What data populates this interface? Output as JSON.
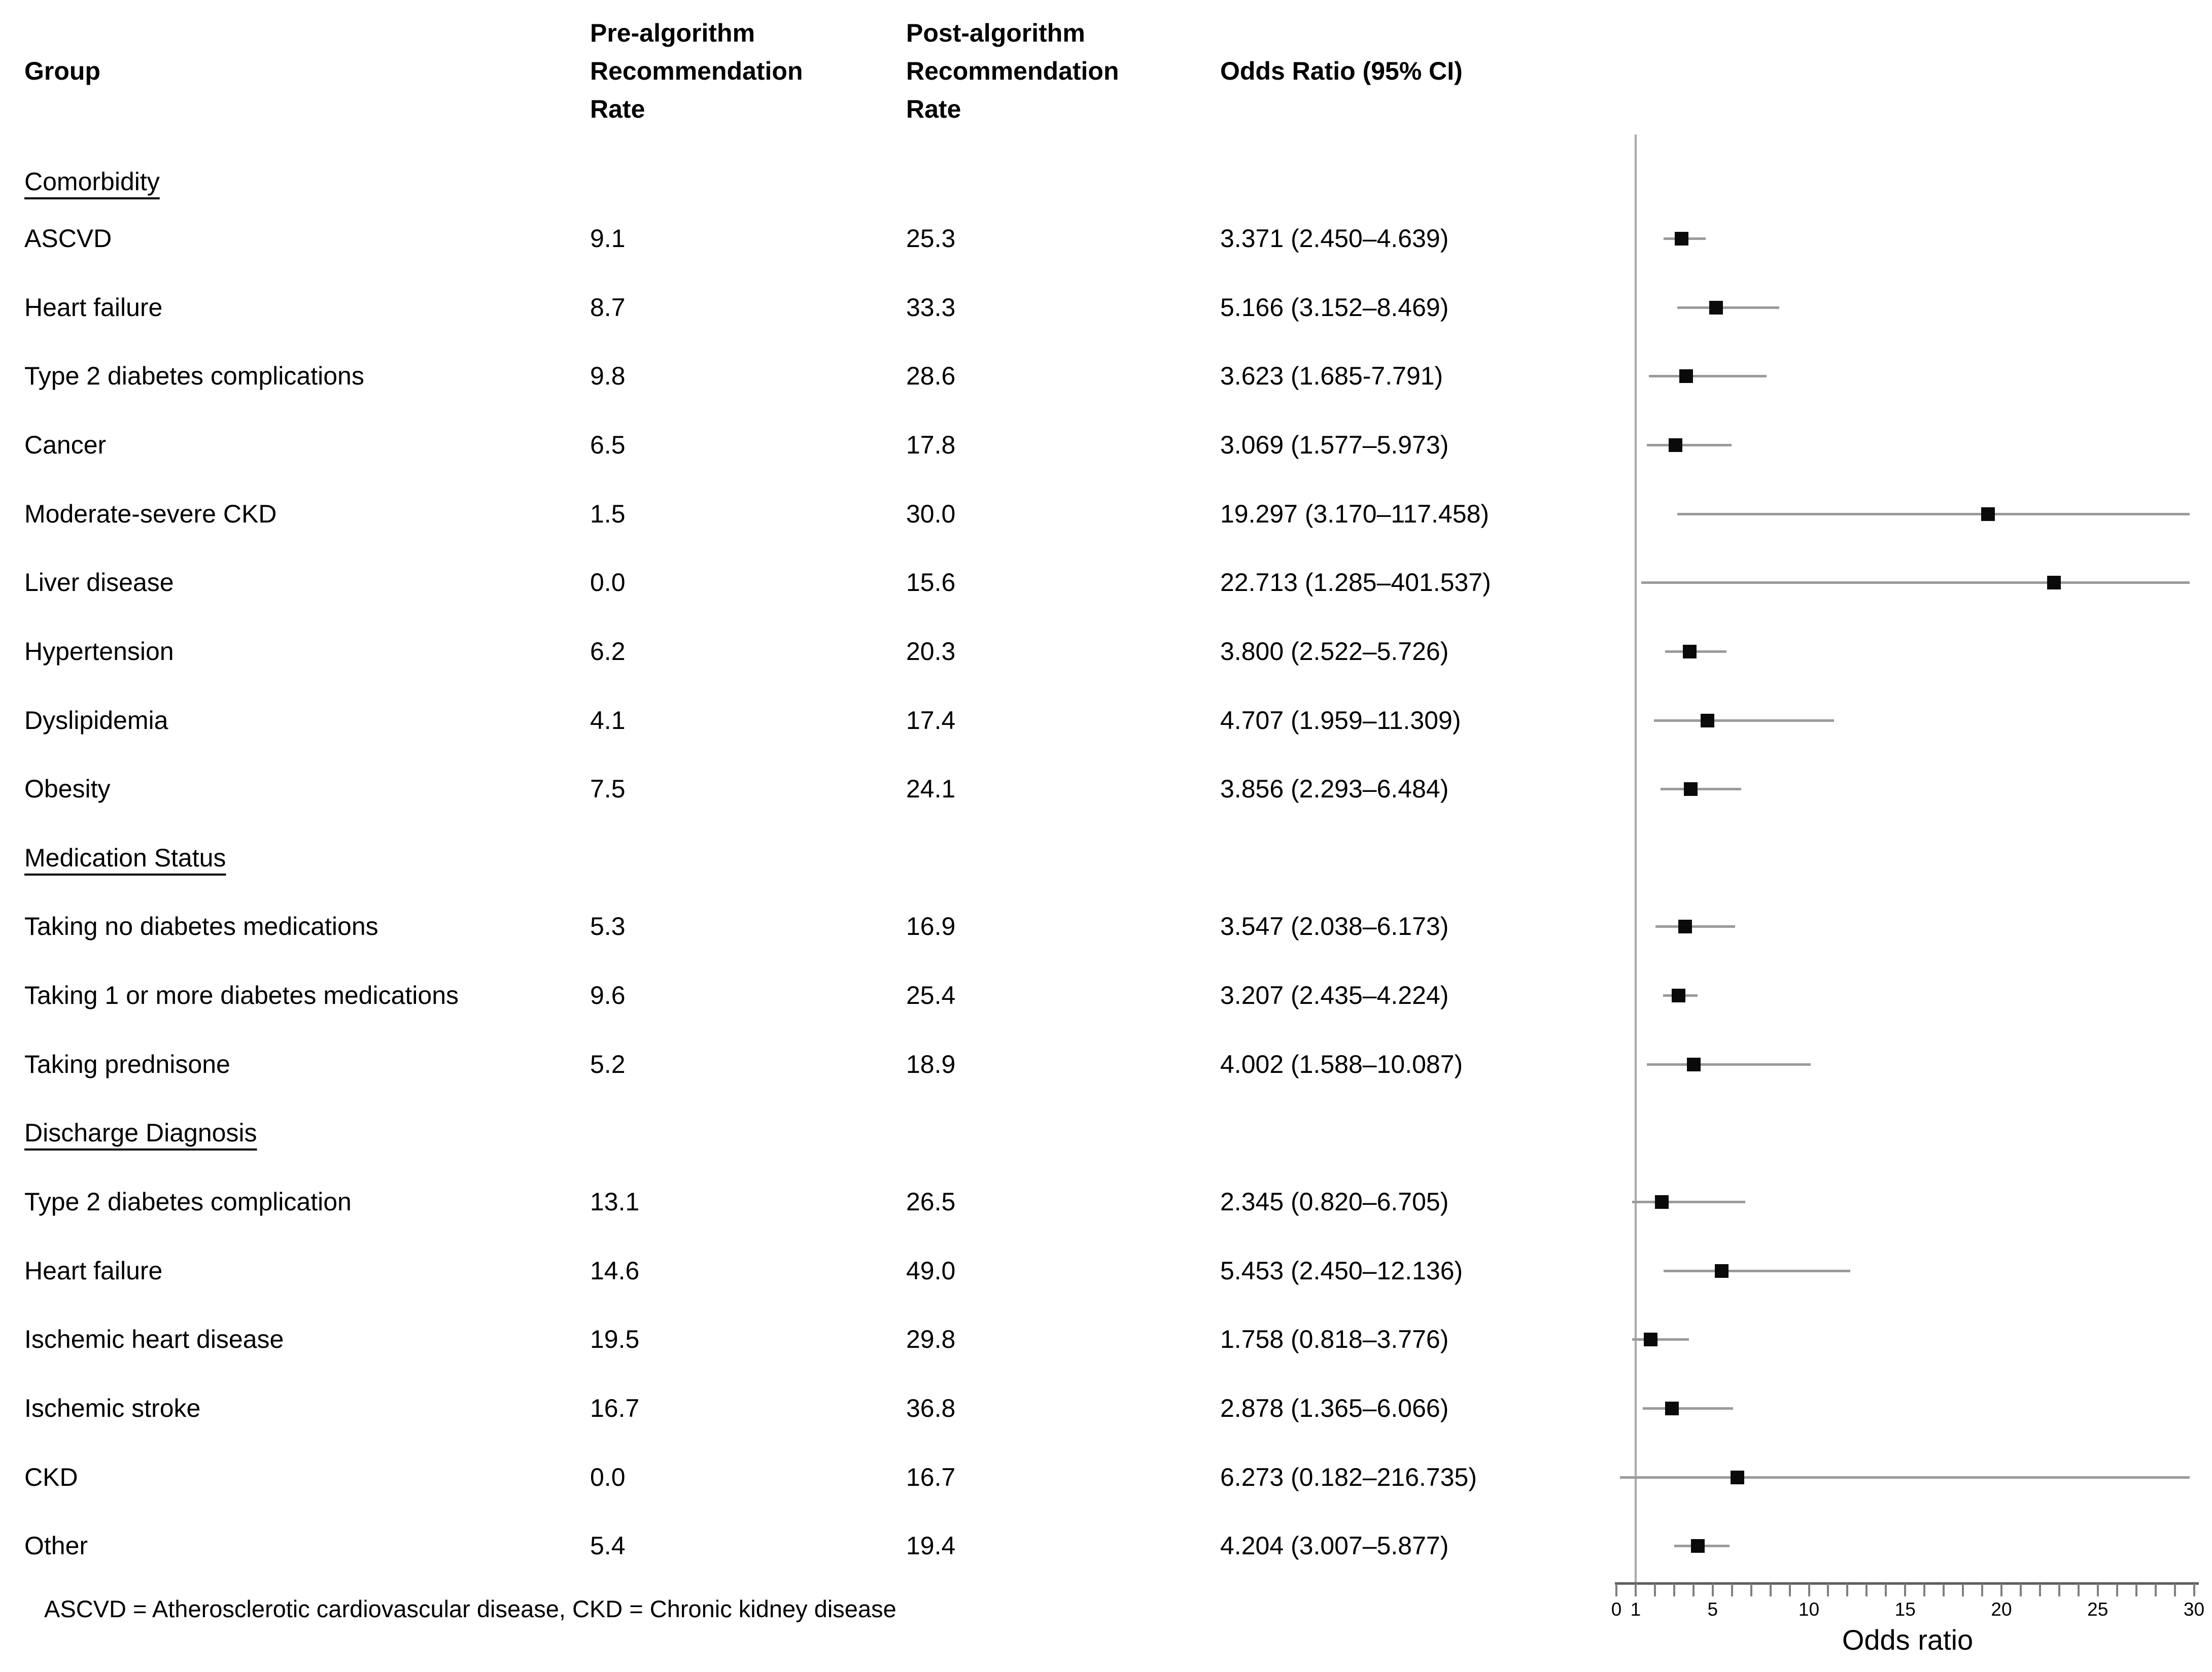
{
  "table": {
    "columns": {
      "group": "Group",
      "pre_lines": [
        "Pre-algorithm",
        "Recommendation",
        "Rate"
      ],
      "post_lines": [
        "Post-algorithm",
        "Recommendation",
        "Rate"
      ],
      "odds_ratio": "Odds Ratio (95% CI)"
    },
    "rows": [
      {
        "type": "section",
        "group": "Comorbidity"
      },
      {
        "type": "data",
        "group": "ASCVD",
        "pre": "9.1",
        "post": "25.3",
        "or_text": "3.371 (2.450–4.639)",
        "or": 3.371,
        "ci_lo": 2.45,
        "ci_hi": 4.639
      },
      {
        "type": "data",
        "group": "Heart failure",
        "pre": "8.7",
        "post": "33.3",
        "or_text": "5.166 (3.152–8.469)",
        "or": 5.166,
        "ci_lo": 3.152,
        "ci_hi": 8.469
      },
      {
        "type": "data",
        "group": "Type 2 diabetes complications",
        "pre": "9.8",
        "post": "28.6",
        "or_text": "3.623 (1.685-7.791)",
        "or": 3.623,
        "ci_lo": 1.685,
        "ci_hi": 7.791
      },
      {
        "type": "data",
        "group": "Cancer",
        "pre": "6.5",
        "post": "17.8",
        "or_text": "3.069 (1.577–5.973)",
        "or": 3.069,
        "ci_lo": 1.577,
        "ci_hi": 5.973
      },
      {
        "type": "data",
        "group": "Moderate-severe CKD",
        "pre": "1.5",
        "post": "30.0",
        "or_text": "19.297 (3.170–117.458)",
        "or": 19.297,
        "ci_lo": 3.17,
        "ci_hi": 117.458
      },
      {
        "type": "data",
        "group": "Liver disease",
        "pre": "0.0",
        "post": "15.6",
        "or_text": "22.713 (1.285–401.537)",
        "or": 22.713,
        "ci_lo": 1.285,
        "ci_hi": 401.537
      },
      {
        "type": "data",
        "group": "Hypertension",
        "pre": "6.2",
        "post": "20.3",
        "or_text": "3.800 (2.522–5.726)",
        "or": 3.8,
        "ci_lo": 2.522,
        "ci_hi": 5.726
      },
      {
        "type": "data",
        "group": "Dyslipidemia",
        "pre": "4.1",
        "post": "17.4",
        "or_text": "4.707 (1.959–11.309)",
        "or": 4.707,
        "ci_lo": 1.959,
        "ci_hi": 11.309
      },
      {
        "type": "data",
        "group": "Obesity",
        "pre": "7.5",
        "post": "24.1",
        "or_text": "3.856 (2.293–6.484)",
        "or": 3.856,
        "ci_lo": 2.293,
        "ci_hi": 6.484
      },
      {
        "type": "section",
        "group": "Medication Status"
      },
      {
        "type": "data",
        "group": "Taking no diabetes medications",
        "pre": "5.3",
        "post": "16.9",
        "or_text": "3.547 (2.038–6.173)",
        "or": 3.547,
        "ci_lo": 2.038,
        "ci_hi": 6.173
      },
      {
        "type": "data",
        "group": "Taking 1 or more diabetes medications",
        "pre": "9.6",
        "post": "25.4",
        "or_text": "3.207 (2.435–4.224)",
        "or": 3.207,
        "ci_lo": 2.435,
        "ci_hi": 4.224
      },
      {
        "type": "data",
        "group": "Taking prednisone",
        "pre": "5.2",
        "post": "18.9",
        "or_text": "4.002 (1.588–10.087)",
        "or": 4.002,
        "ci_lo": 1.588,
        "ci_hi": 10.087
      },
      {
        "type": "section",
        "group": "Discharge Diagnosis"
      },
      {
        "type": "data",
        "group": "Type 2 diabetes complication",
        "pre": "13.1",
        "post": "26.5",
        "or_text": "2.345 (0.820–6.705)",
        "or": 2.345,
        "ci_lo": 0.82,
        "ci_hi": 6.705
      },
      {
        "type": "data",
        "group": "Heart failure",
        "pre": "14.6",
        "post": "49.0",
        "or_text": "5.453 (2.450–12.136)",
        "or": 5.453,
        "ci_lo": 2.45,
        "ci_hi": 12.136
      },
      {
        "type": "data",
        "group": "Ischemic heart disease",
        "pre": "19.5",
        "post": "29.8",
        "or_text": "1.758 (0.818–3.776)",
        "or": 1.758,
        "ci_lo": 0.818,
        "ci_hi": 3.776
      },
      {
        "type": "data",
        "group": "Ischemic stroke",
        "pre": "16.7",
        "post": "36.8",
        "or_text": "2.878 (1.365–6.066)",
        "or": 2.878,
        "ci_lo": 1.365,
        "ci_hi": 6.066
      },
      {
        "type": "data",
        "group": "CKD",
        "pre": "0.0",
        "post": "16.7",
        "or_text": "6.273 (0.182–216.735)",
        "or": 6.273,
        "ci_lo": 0.182,
        "ci_hi": 216.735
      },
      {
        "type": "data",
        "group": "Other",
        "pre": "5.4",
        "post": "19.4",
        "or_text": "4.204 (3.007–5.877)",
        "or": 4.204,
        "ci_lo": 3.007,
        "ci_hi": 5.877
      }
    ]
  },
  "footnote": "ASCVD = Atherosclerotic cardiovascular disease, CKD = Chronic kidney disease",
  "chart_data": {
    "type": "scatter",
    "subtype": "forest_plot",
    "title": "Pre- vs post-algorithm recommendation rates and odds ratios by group",
    "xlabel": "Odds ratio",
    "xlim": [
      0,
      30
    ],
    "xtick_interval": 1,
    "xtick_labels": [
      0,
      1,
      5,
      10,
      15,
      20,
      25,
      30
    ],
    "reference_line_x": 1,
    "legend": "none",
    "grid": false,
    "ci_clipped_at_xmax": [
      "Moderate-severe CKD",
      "Liver disease",
      "CKD"
    ],
    "points": [
      {
        "group": "ASCVD",
        "odds_ratio": 3.371,
        "ci_low": 2.45,
        "ci_high": 4.639
      },
      {
        "group": "Heart failure",
        "odds_ratio": 5.166,
        "ci_low": 3.152,
        "ci_high": 8.469
      },
      {
        "group": "Type 2 diabetes complications",
        "odds_ratio": 3.623,
        "ci_low": 1.685,
        "ci_high": 7.791
      },
      {
        "group": "Cancer",
        "odds_ratio": 3.069,
        "ci_low": 1.577,
        "ci_high": 5.973
      },
      {
        "group": "Moderate-severe CKD",
        "odds_ratio": 19.297,
        "ci_low": 3.17,
        "ci_high": 117.458
      },
      {
        "group": "Liver disease",
        "odds_ratio": 22.713,
        "ci_low": 1.285,
        "ci_high": 401.537
      },
      {
        "group": "Hypertension",
        "odds_ratio": 3.8,
        "ci_low": 2.522,
        "ci_high": 5.726
      },
      {
        "group": "Dyslipidemia",
        "odds_ratio": 4.707,
        "ci_low": 1.959,
        "ci_high": 11.309
      },
      {
        "group": "Obesity",
        "odds_ratio": 3.856,
        "ci_low": 2.293,
        "ci_high": 6.484
      },
      {
        "group": "Taking no diabetes medications",
        "odds_ratio": 3.547,
        "ci_low": 2.038,
        "ci_high": 6.173
      },
      {
        "group": "Taking 1 or more diabetes medications",
        "odds_ratio": 3.207,
        "ci_low": 2.435,
        "ci_high": 4.224
      },
      {
        "group": "Taking prednisone",
        "odds_ratio": 4.002,
        "ci_low": 1.588,
        "ci_high": 10.087
      },
      {
        "group": "Type 2 diabetes complication",
        "odds_ratio": 2.345,
        "ci_low": 0.82,
        "ci_high": 6.705
      },
      {
        "group": "Heart failure",
        "odds_ratio": 5.453,
        "ci_low": 2.45,
        "ci_high": 12.136
      },
      {
        "group": "Ischemic heart disease",
        "odds_ratio": 1.758,
        "ci_low": 0.818,
        "ci_high": 3.776
      },
      {
        "group": "Ischemic stroke",
        "odds_ratio": 2.878,
        "ci_low": 1.365,
        "ci_high": 6.066
      },
      {
        "group": "CKD",
        "odds_ratio": 6.273,
        "ci_low": 0.182,
        "ci_high": 216.735
      },
      {
        "group": "Other",
        "odds_ratio": 4.204,
        "ci_low": 3.007,
        "ci_high": 5.877
      }
    ]
  }
}
